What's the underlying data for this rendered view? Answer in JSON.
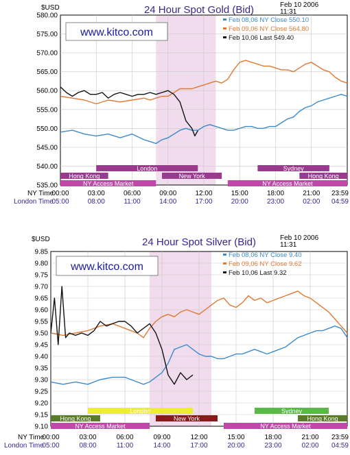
{
  "chart_data": [
    {
      "type": "line",
      "title": "24 Hour Spot Gold (Bid)",
      "date_line1": "Feb 10 2006",
      "date_line2": "11:31",
      "unit_label": "$USD",
      "logo": "www.kitco.com",
      "ylim": [
        535,
        580
      ],
      "yticks": [
        "535.00",
        "540.00",
        "545.00",
        "550.00",
        "555.00",
        "560.00",
        "565.00",
        "570.00",
        "575.00",
        "580.00"
      ],
      "ytick_values": [
        535,
        540,
        545,
        550,
        555,
        560,
        565,
        570,
        575,
        580
      ],
      "xlim": [
        0,
        24
      ],
      "ny_row_label": "NY Time",
      "london_row_label": "London Time",
      "ny_ticks": [
        "00:00",
        "03:00",
        "06:00",
        "09:00",
        "12:00",
        "15:00",
        "18:00",
        "21:00",
        "23:59"
      ],
      "london_ticks": [
        "05:00",
        "08:00",
        "11:00",
        "14:00",
        "17:00",
        "20:00",
        "23:00",
        "02:00",
        "04:59"
      ],
      "tick_hours": [
        0,
        3,
        6,
        9,
        12,
        15,
        18,
        21,
        24
      ],
      "shade_hours": [
        8,
        13
      ],
      "markets": [
        {
          "label": "London",
          "start": 3,
          "end": 11.5,
          "row": 0,
          "color": "#9a3a8e",
          "text_color": "#ffffff"
        },
        {
          "label": "Sydney",
          "start": 16.5,
          "end": 22.5,
          "row": 0,
          "color": "#9a3a8e",
          "text_color": "#ffffff"
        },
        {
          "label": "Hong Kong",
          "start": 0,
          "end": 4,
          "row": 1,
          "color": "#9a3a8e",
          "text_color": "#ffffff"
        },
        {
          "label": "New York",
          "start": 8.5,
          "end": 13.5,
          "row": 1,
          "color": "#9a3a8e",
          "text_color": "#ffffff"
        },
        {
          "label": "Hong Kong",
          "start": 20,
          "end": 24,
          "row": 1,
          "color": "#9a3a8e",
          "text_color": "#ffffff"
        },
        {
          "label": "NY Access Market",
          "start": 0,
          "end": 8,
          "row": 2,
          "color": "#c048a8",
          "text_color": "#ffffff"
        },
        {
          "label": "NY Access Market",
          "start": 14,
          "end": 24,
          "row": 2,
          "color": "#c048a8",
          "text_color": "#ffffff"
        }
      ],
      "series": [
        {
          "name": "Feb 08,06",
          "legend_prefix": "Feb 08,06",
          "legend_kind": "NY Close",
          "legend_value": "550.10",
          "color": "#3a8acc",
          "x": [
            0,
            1,
            2,
            3,
            4,
            5,
            6,
            7,
            7.5,
            8,
            8.5,
            9,
            9.5,
            10,
            10.5,
            11,
            11.5,
            12,
            12.5,
            13,
            13.5,
            14,
            14.5,
            15,
            15.5,
            16,
            16.5,
            17,
            17.5,
            18,
            18.5,
            19,
            19.5,
            20,
            20.5,
            21,
            21.5,
            22,
            22.5,
            23,
            23.5,
            24
          ],
          "values": [
            549,
            549.5,
            548.5,
            548,
            548.5,
            547.5,
            548.5,
            547,
            546.5,
            546,
            547,
            547.5,
            548.5,
            549.5,
            550,
            549.5,
            549.5,
            550.5,
            551,
            550.5,
            550,
            549.5,
            549.5,
            550,
            550.5,
            550.5,
            550,
            550,
            550.5,
            550.5,
            551.5,
            552.5,
            553,
            554.5,
            555.5,
            556,
            557,
            557.5,
            558,
            558.5,
            559,
            558.5
          ]
        },
        {
          "name": "Feb 09,06",
          "legend_prefix": "Feb 09,06",
          "legend_kind": "NY Close",
          "legend_value": "564.80",
          "color": "#e07830",
          "x": [
            0,
            1,
            2,
            3,
            4,
            5,
            6,
            7,
            7.5,
            8,
            8.5,
            9,
            9.5,
            10,
            10.5,
            11,
            11.5,
            12,
            12.5,
            13,
            13.5,
            14,
            14.5,
            15,
            15.5,
            16,
            16.5,
            17,
            17.5,
            18,
            18.5,
            19,
            19.5,
            20,
            20.5,
            21,
            21.5,
            22,
            22.5,
            23,
            23.5,
            24
          ],
          "values": [
            558.5,
            558,
            557.5,
            556.5,
            557.5,
            557,
            557.5,
            558,
            557.5,
            558,
            558.5,
            558.5,
            559.5,
            560.5,
            560.5,
            560.5,
            561,
            561.5,
            562,
            562.5,
            562,
            563,
            565.5,
            567.5,
            568,
            567.5,
            567,
            566.5,
            566.5,
            566,
            565.5,
            565.5,
            565,
            566,
            567,
            567.5,
            566.5,
            565.5,
            565,
            563.5,
            562.5,
            562
          ]
        },
        {
          "name": "Feb 10,06",
          "legend_prefix": "Feb 10,06",
          "legend_kind": "Last",
          "legend_value": "549.40",
          "color": "#111111",
          "x": [
            0,
            0.5,
            1,
            1.5,
            2,
            2.5,
            3,
            3.5,
            4,
            4.5,
            5,
            5.5,
            6,
            6.5,
            7,
            7.5,
            8,
            8.5,
            9,
            9.5,
            10,
            10.5,
            11,
            11.25,
            11.5
          ],
          "values": [
            561,
            559.5,
            558.5,
            559.5,
            560,
            559,
            559,
            559.5,
            558,
            559,
            559.5,
            559,
            558.5,
            559,
            559,
            559.5,
            559,
            559.5,
            560,
            559,
            557,
            552,
            550,
            548,
            549.4
          ]
        }
      ]
    },
    {
      "type": "line",
      "title": "24 Hour Spot Silver (Bid)",
      "date_line1": "Feb 10 2006",
      "date_line2": "11:31",
      "unit_label": "$USD",
      "logo": "www.kitco.com",
      "ylim": [
        9.1,
        9.85
      ],
      "yticks": [
        "9.10",
        "9.15",
        "9.20",
        "9.25",
        "9.30",
        "9.35",
        "9.40",
        "9.45",
        "9.50",
        "9.55",
        "9.60",
        "9.65",
        "9.70",
        "9.75",
        "9.80",
        "9.85"
      ],
      "ytick_values": [
        9.1,
        9.15,
        9.2,
        9.25,
        9.3,
        9.35,
        9.4,
        9.45,
        9.5,
        9.55,
        9.6,
        9.65,
        9.7,
        9.75,
        9.8,
        9.85
      ],
      "xlim": [
        0,
        24
      ],
      "ny_row_label": "NY Time",
      "london_row_label": "London Time",
      "ny_ticks": [
        "00:00",
        "03:00",
        "06:00",
        "09:00",
        "12:00",
        "15:00",
        "18:00",
        "21:00",
        "23:59"
      ],
      "london_ticks": [
        "05:00",
        "08:00",
        "11:00",
        "14:00",
        "17:00",
        "20:00",
        "23:00",
        "02:00",
        "04:59"
      ],
      "tick_hours": [
        0,
        3,
        6,
        9,
        12,
        15,
        18,
        21,
        24
      ],
      "shade_hours": [
        8,
        13
      ],
      "markets": [
        {
          "label": "London",
          "start": 3,
          "end": 11.5,
          "row": 0,
          "color": "#eeee30",
          "text_color": "#000000"
        },
        {
          "label": "Sydney",
          "start": 16.5,
          "end": 22.5,
          "row": 0,
          "color": "#58b848",
          "text_color": "#ffffff"
        },
        {
          "label": "Hong Kong",
          "start": 0,
          "end": 4,
          "row": 1,
          "color": "#5a7a2a",
          "text_color": "#ffffff"
        },
        {
          "label": "New York",
          "start": 8.5,
          "end": 13.5,
          "row": 1,
          "color": "#8a1a1a",
          "text_color": "#ffffff"
        },
        {
          "label": "Hong Kong",
          "start": 20,
          "end": 24,
          "row": 1,
          "color": "#5a7a2a",
          "text_color": "#ffffff"
        },
        {
          "label": "NY Access Market",
          "start": 0,
          "end": 8,
          "row": 2,
          "color": "#c048a8",
          "text_color": "#ffffff"
        },
        {
          "label": "NY Access Market",
          "start": 14,
          "end": 24,
          "row": 2,
          "color": "#c048a8",
          "text_color": "#ffffff"
        }
      ],
      "series": [
        {
          "name": "Feb 08,06",
          "legend_prefix": "Feb 08,06",
          "legend_kind": "NY Close",
          "legend_value": "9.40",
          "color": "#3a8acc",
          "x": [
            0,
            1,
            2,
            3,
            4,
            5,
            6,
            7,
            7.5,
            8,
            8.5,
            9,
            9.5,
            10,
            10.5,
            11,
            11.5,
            12,
            12.5,
            13,
            13.5,
            14,
            14.5,
            15,
            15.5,
            16,
            16.5,
            17,
            17.5,
            18,
            18.5,
            19,
            19.5,
            20,
            20.5,
            21,
            21.5,
            22,
            22.5,
            23,
            23.5,
            24
          ],
          "values": [
            9.29,
            9.28,
            9.29,
            9.28,
            9.3,
            9.31,
            9.31,
            9.29,
            9.28,
            9.29,
            9.31,
            9.33,
            9.37,
            9.43,
            9.44,
            9.45,
            9.43,
            9.41,
            9.4,
            9.4,
            9.39,
            9.39,
            9.4,
            9.41,
            9.41,
            9.42,
            9.43,
            9.42,
            9.41,
            9.42,
            9.43,
            9.44,
            9.46,
            9.48,
            9.49,
            9.5,
            9.51,
            9.51,
            9.52,
            9.53,
            9.52,
            9.48
          ]
        },
        {
          "name": "Feb 09,06",
          "legend_prefix": "Feb 09,06",
          "legend_kind": "NY Close",
          "legend_value": "9.62",
          "color": "#e07830",
          "x": [
            0,
            1,
            2,
            3,
            4,
            5,
            6,
            7,
            7.5,
            8,
            8.5,
            9,
            9.5,
            10,
            10.5,
            11,
            11.5,
            12,
            12.5,
            13,
            13.5,
            14,
            14.5,
            15,
            15.5,
            16,
            16.5,
            17,
            17.5,
            18,
            18.5,
            19,
            19.5,
            20,
            20.5,
            21,
            21.5,
            22,
            22.5,
            23,
            23.5,
            24
          ],
          "values": [
            9.5,
            9.49,
            9.5,
            9.51,
            9.53,
            9.54,
            9.52,
            9.5,
            9.48,
            9.52,
            9.55,
            9.57,
            9.58,
            9.57,
            9.59,
            9.6,
            9.59,
            9.58,
            9.6,
            9.62,
            9.64,
            9.65,
            9.62,
            9.61,
            9.63,
            9.66,
            9.64,
            9.65,
            9.63,
            9.64,
            9.65,
            9.66,
            9.67,
            9.68,
            9.66,
            9.65,
            9.63,
            9.61,
            9.59,
            9.56,
            9.53,
            9.5
          ]
        },
        {
          "name": "Feb 10,06",
          "legend_prefix": "Feb 10,06",
          "legend_kind": "Last",
          "legend_value": "9.32",
          "color": "#111111",
          "x": [
            0,
            0.3,
            0.6,
            0.9,
            1.2,
            1.5,
            2,
            2.5,
            3,
            3.5,
            4,
            4.5,
            5,
            5.5,
            6,
            6.5,
            7,
            7.5,
            8,
            8.5,
            9,
            9.5,
            10,
            10.5,
            11,
            11.5
          ],
          "values": [
            9.5,
            9.65,
            9.45,
            9.7,
            9.48,
            9.5,
            9.49,
            9.5,
            9.49,
            9.51,
            9.55,
            9.53,
            9.54,
            9.55,
            9.55,
            9.53,
            9.5,
            9.52,
            9.54,
            9.5,
            9.43,
            9.32,
            9.28,
            9.33,
            9.3,
            9.32
          ]
        }
      ]
    }
  ]
}
